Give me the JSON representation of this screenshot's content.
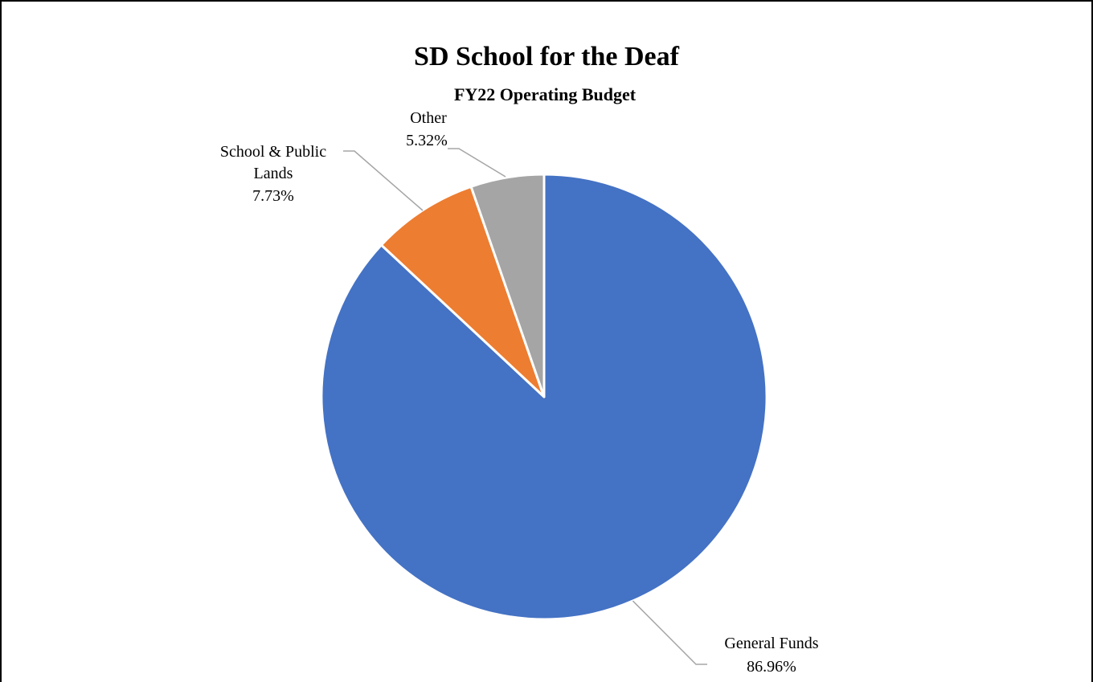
{
  "chart_data": {
    "type": "pie",
    "title": "SD School for the Deaf",
    "subtitle": "FY22 Operating Budget",
    "slices": [
      {
        "label": "General Funds",
        "value": 86.96,
        "value_label": "86.96%",
        "color": "#4472C4"
      },
      {
        "label": "School & Public Lands",
        "value": 7.73,
        "value_label": "7.73%",
        "color": "#ED7D31"
      },
      {
        "label": "Other",
        "value": 5.32,
        "value_label": "5.32%",
        "color": "#A5A5A5"
      }
    ],
    "start_angle": "12 o'clock",
    "direction": "clockwise",
    "legend": "none",
    "leader_line_color": "#A5A5A5"
  }
}
